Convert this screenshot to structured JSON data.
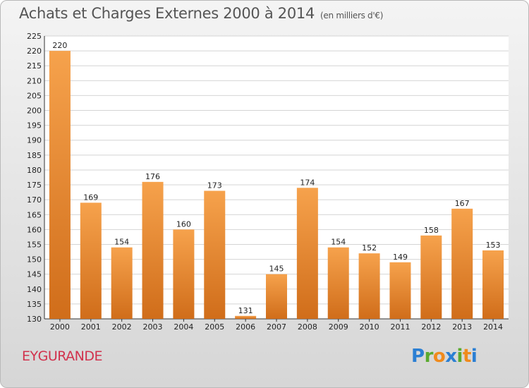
{
  "title": "Achats et Charges Externes 2000 à 2014",
  "subtitle": "(en milliers d'€)",
  "commune": "EYGURANDE",
  "logo": {
    "text": "Proxiti",
    "letters": [
      {
        "ch": "P",
        "color": "#2b7fd3"
      },
      {
        "ch": "r",
        "color": "#5aaa2f"
      },
      {
        "ch": "o",
        "color": "#f08a1c"
      },
      {
        "ch": "x",
        "color": "#2b7fd3"
      },
      {
        "ch": "i",
        "color": "#5aaa2f"
      },
      {
        "ch": "t",
        "color": "#f08a1c"
      },
      {
        "ch": "i",
        "color": "#2b7fd3"
      }
    ]
  },
  "colors": {
    "bar_top": "#f6a24c",
    "bar_bottom": "#d06d1a"
  },
  "chart_data": {
    "type": "bar",
    "title": "Achats et Charges Externes 2000 à 2014",
    "subtitle": "(en milliers d'€)",
    "categories": [
      "2000",
      "2001",
      "2002",
      "2003",
      "2004",
      "2005",
      "2006",
      "2007",
      "2008",
      "2009",
      "2010",
      "2011",
      "2012",
      "2013",
      "2014"
    ],
    "values": [
      220,
      169,
      154,
      176,
      160,
      173,
      131,
      145,
      174,
      154,
      152,
      149,
      158,
      167,
      153
    ],
    "ylim": [
      130,
      225
    ],
    "yticks": [
      130,
      135,
      140,
      145,
      150,
      155,
      160,
      165,
      170,
      175,
      180,
      185,
      190,
      195,
      200,
      205,
      210,
      215,
      220,
      225
    ],
    "grid": true
  }
}
